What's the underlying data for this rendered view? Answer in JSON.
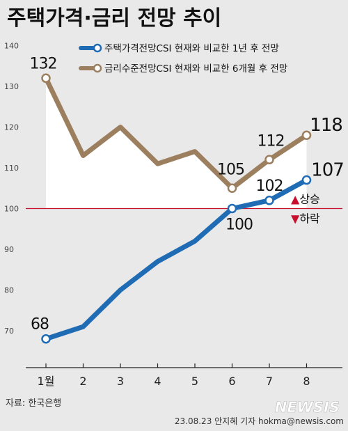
{
  "header": {
    "title": "주택가격·금리 전망 추이"
  },
  "chart_data": {
    "type": "line",
    "title": "주택가격·금리 전망 추이",
    "categories": [
      "1월",
      "2",
      "3",
      "4",
      "5",
      "6",
      "7",
      "8"
    ],
    "x": [
      1,
      2,
      3,
      4,
      5,
      6,
      7,
      8
    ],
    "yticks": [
      70,
      80,
      90,
      100,
      110,
      120,
      130,
      140
    ],
    "ylim": [
      63,
      143
    ],
    "grid": false,
    "legend_position": "top-right",
    "reference_line": {
      "value": 100,
      "up_label": "▲상승",
      "down_label": "▼하락",
      "color": "#c8102e"
    },
    "series": [
      {
        "name": "주택가격전망CSI 현재와 비교한 1년 후 전망",
        "color": "#1f6cb5",
        "values": [
          68,
          71,
          80,
          87,
          92,
          100,
          102,
          107
        ],
        "labels": [
          {
            "index": 0,
            "text": "68"
          },
          {
            "index": 5,
            "text": "100"
          },
          {
            "index": 6,
            "text": "102"
          },
          {
            "index": 7,
            "text": "107"
          }
        ]
      },
      {
        "name": "금리수준전망CSI 현재와 비교한 6개월 후 전망",
        "color": "#9c7f5e",
        "values": [
          132,
          113,
          120,
          111,
          114,
          105,
          112,
          118
        ],
        "labels": [
          {
            "index": 0,
            "text": "132"
          },
          {
            "index": 5,
            "text": "105"
          },
          {
            "index": 6,
            "text": "112"
          },
          {
            "index": 7,
            "text": "118"
          }
        ]
      }
    ]
  },
  "footer": {
    "source": "자료: 한국은행",
    "credit": "23.08.23 안지혜 기자 hokma@newsis.com",
    "logo": "NEWSIS"
  },
  "colors": {
    "background": "#e9e9e9",
    "title": "#111111",
    "axis": "#333333"
  }
}
